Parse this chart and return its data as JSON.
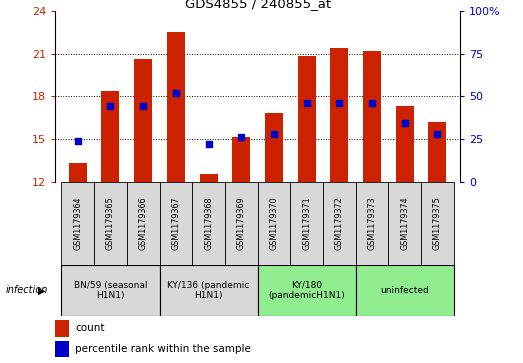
{
  "title": "GDS4855 / 240855_at",
  "samples": [
    "GSM1179364",
    "GSM1179365",
    "GSM1179366",
    "GSM1179367",
    "GSM1179368",
    "GSM1179369",
    "GSM1179370",
    "GSM1179371",
    "GSM1179372",
    "GSM1179373",
    "GSM1179374",
    "GSM1179375"
  ],
  "count_values": [
    13.3,
    18.4,
    20.6,
    22.5,
    12.5,
    15.1,
    16.8,
    20.8,
    21.4,
    21.2,
    17.3,
    16.2
  ],
  "percentile_values": [
    24,
    44,
    44,
    52,
    22,
    26,
    28,
    46,
    46,
    46,
    34,
    28
  ],
  "y_min": 12,
  "y_max": 24,
  "y_ticks_left": [
    12,
    15,
    18,
    21,
    24
  ],
  "y_ticks_right": [
    0,
    25,
    50,
    75,
    100
  ],
  "bar_color": "#cc2200",
  "marker_color": "#0000cc",
  "bg_color": "#ffffff",
  "infection_groups": [
    {
      "label": "BN/59 (seasonal\nH1N1)",
      "start": 0,
      "end": 3,
      "color": "#d8d8d8"
    },
    {
      "label": "KY/136 (pandemic\nH1N1)",
      "start": 3,
      "end": 6,
      "color": "#d8d8d8"
    },
    {
      "label": "KY/180\n(pandemicH1N1)",
      "start": 6,
      "end": 9,
      "color": "#90ee90"
    },
    {
      "label": "uninfected",
      "start": 9,
      "end": 12,
      "color": "#90ee90"
    }
  ],
  "legend_count_label": "count",
  "legend_pct_label": "percentile rank within the sample",
  "infection_label": "infection",
  "bar_width": 0.55
}
